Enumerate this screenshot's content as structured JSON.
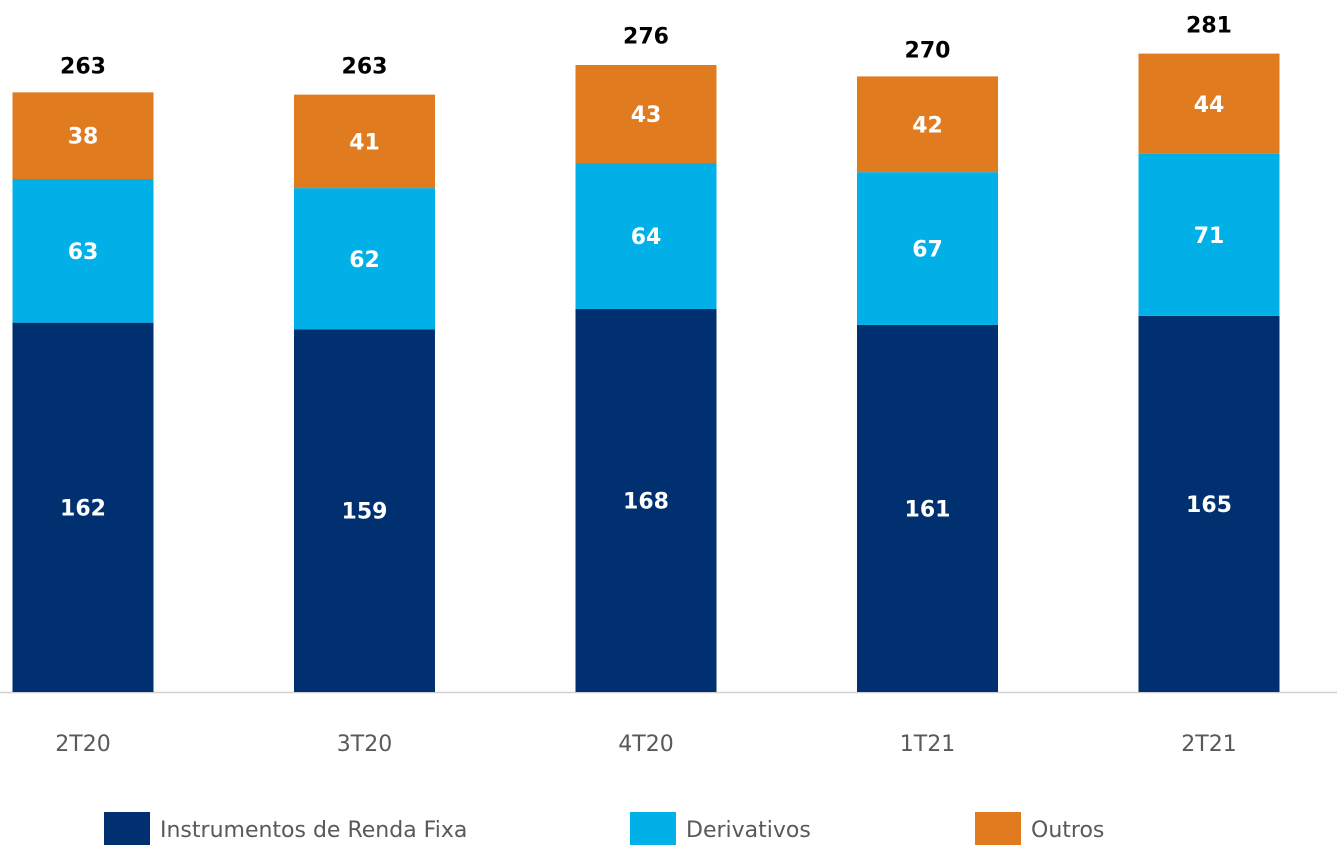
{
  "chart_data": {
    "type": "stacked_bar",
    "categories": [
      "2T20",
      "3T20",
      "4T20",
      "1T21",
      "2T21"
    ],
    "series": [
      {
        "name": "Instrumentos de Renda Fixa",
        "color": "#003070",
        "values": [
          162,
          159,
          168,
          161,
          165
        ]
      },
      {
        "name": "Derivativos",
        "color": "#00b0e6",
        "values": [
          63,
          62,
          64,
          67,
          71
        ]
      },
      {
        "name": "Outros",
        "color": "#e07b20",
        "values": [
          38,
          41,
          43,
          42,
          44
        ]
      }
    ],
    "totals": [
      263,
      263,
      276,
      270,
      281
    ],
    "ylim": [
      0,
      300
    ],
    "legend": "bottom"
  }
}
